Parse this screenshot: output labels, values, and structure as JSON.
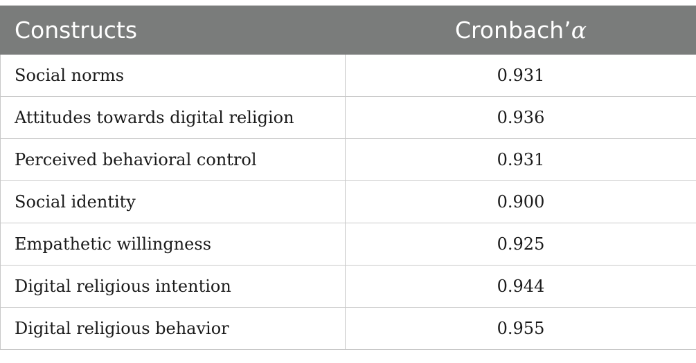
{
  "table": {
    "headers": {
      "constructs": "Constructs",
      "cronbach_prefix": "Cronbach’",
      "cronbach_symbol": "α"
    },
    "rows": [
      {
        "construct": "Social norms",
        "alpha": "0.931"
      },
      {
        "construct": "Attitudes towards digital religion",
        "alpha": "0.936"
      },
      {
        "construct": "Perceived behavioral control",
        "alpha": "0.931"
      },
      {
        "construct": "Social identity",
        "alpha": "0.900"
      },
      {
        "construct": "Empathetic willingness",
        "alpha": "0.925"
      },
      {
        "construct": "Digital religious intention",
        "alpha": "0.944"
      },
      {
        "construct": "Digital religious behavior",
        "alpha": "0.955"
      }
    ]
  },
  "colors": {
    "header_bg": "#7a7c7b",
    "header_text": "#ffffff",
    "border": "#c8c8c8"
  }
}
